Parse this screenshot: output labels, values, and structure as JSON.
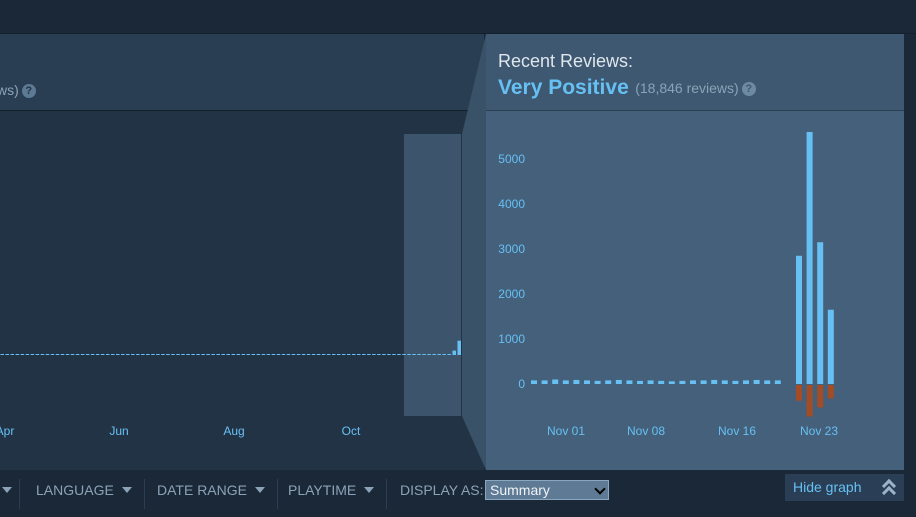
{
  "overall": {
    "count_text": "ws)",
    "help_glyph": "?",
    "tick_labels": [
      "Apr",
      "Jun",
      "Aug",
      "Oct"
    ]
  },
  "recent": {
    "title": "Recent Reviews:",
    "summary": "Very Positive",
    "count_text": "(18,846 reviews)",
    "help_glyph": "?"
  },
  "filters": {
    "language": "LANGUAGE",
    "date_range": "DATE RANGE",
    "playtime": "PLAYTIME",
    "display_as": "DISPLAY AS:",
    "display_value": "Summary"
  },
  "hide_graph": "Hide graph",
  "colors": {
    "positive": "#66c0f4",
    "negative": "#a34c25",
    "accent": "#66c0f4"
  },
  "chart_data": [
    {
      "type": "bar",
      "x_tick_labels": [
        "Apr",
        "Jun",
        "Aug",
        "Oct"
      ],
      "series": [
        {
          "values": [
            20,
            20,
            20,
            20,
            20,
            20,
            20,
            20,
            20,
            20,
            20,
            20,
            20,
            20,
            20,
            20,
            20,
            20,
            20,
            20,
            20,
            20,
            20,
            20,
            20,
            20,
            20,
            20,
            20,
            20,
            20,
            20,
            20,
            20,
            20,
            20,
            20,
            20,
            20,
            20,
            20,
            20,
            20,
            20,
            20,
            20,
            20,
            20,
            20,
            20,
            20,
            20,
            20,
            20,
            20,
            20,
            20,
            20,
            20,
            20,
            20,
            20,
            20,
            20,
            20,
            20,
            20,
            20,
            20,
            20,
            20,
            20,
            20,
            20,
            20,
            20,
            20,
            20,
            20,
            20,
            20,
            20,
            20,
            20,
            20,
            20,
            20,
            20,
            20,
            20,
            400,
            1300
          ]
        }
      ],
      "selected_range": "recent"
    },
    {
      "type": "bar",
      "yticks": [
        0,
        1000,
        2000,
        3000,
        4000,
        5000
      ],
      "x_tick_labels": [
        "Nov 01",
        "Nov 08",
        "Nov 16",
        "Nov 23"
      ],
      "ylim": [
        -800,
        5700
      ],
      "positive": [
        80,
        80,
        100,
        80,
        90,
        80,
        70,
        80,
        90,
        80,
        70,
        80,
        70,
        60,
        70,
        80,
        80,
        90,
        80,
        70,
        80,
        90,
        80,
        80,
        0,
        2850,
        5600,
        3150,
        1650
      ],
      "negative": [
        0,
        0,
        0,
        0,
        0,
        0,
        0,
        0,
        0,
        0,
        0,
        0,
        0,
        0,
        0,
        0,
        0,
        0,
        0,
        0,
        0,
        0,
        0,
        0,
        0,
        -350,
        -700,
        -500,
        -300
      ]
    }
  ]
}
